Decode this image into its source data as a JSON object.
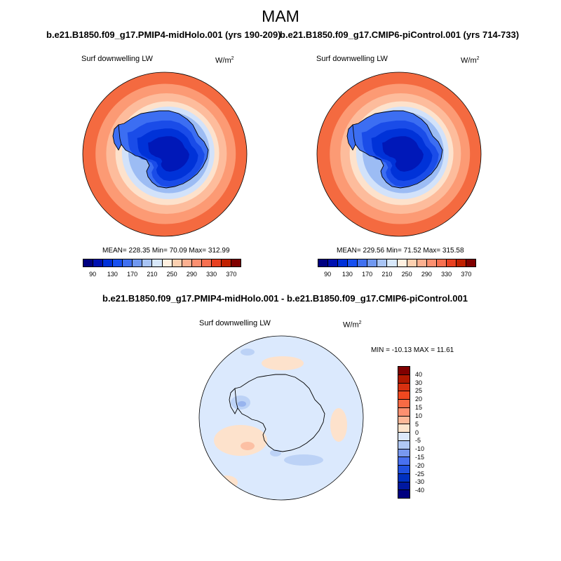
{
  "title": "MAM",
  "left_panel": {
    "case": "b.e21.B1850.f09_g17.PMIP4-midHolo.001 (yrs 190-209)",
    "variable": "Surf downwelling LW",
    "units": "W/m",
    "units_exp": "2",
    "stats": "MEAN= 228.35   Min=  70.09   Max= 312.99"
  },
  "right_panel": {
    "case": "b.e21.B1850.f09_g17.CMIP6-piControl.001 (yrs 714-733)",
    "variable": "Surf downwelling LW",
    "units": "W/m",
    "units_exp": "2",
    "stats": "MEAN= 229.56   Min=  71.52   Max= 315.58"
  },
  "diff_panel": {
    "case": "b.e21.B1850.f09_g17.PMIP4-midHolo.001 - b.e21.B1850.f09_g17.CMIP6-piControl.001",
    "variable": "Surf downwelling LW",
    "units": "W/m",
    "units_exp": "2",
    "minmax": "MIN = -10.13 MAX =  11.61"
  },
  "abs_colorbar": {
    "labels": [
      "90",
      "130",
      "170",
      "210",
      "250",
      "290",
      "330",
      "370"
    ],
    "colors": [
      "#000080",
      "#0010b0",
      "#0030d8",
      "#1850f0",
      "#4070f0",
      "#7098f0",
      "#a8c4f4",
      "#d8e8fa",
      "#fff0e0",
      "#fcd0b0",
      "#fcb090",
      "#fc9070",
      "#f87050",
      "#e84020",
      "#c02000",
      "#800000"
    ]
  },
  "diff_colorbar": {
    "labels": [
      "40",
      "30",
      "25",
      "20",
      "15",
      "10",
      "5",
      "0",
      "-5",
      "-10",
      "-15",
      "-20",
      "-25",
      "-30",
      "-40"
    ],
    "colors": [
      "#800000",
      "#b01800",
      "#d83010",
      "#f04820",
      "#f86a44",
      "#fc9070",
      "#fcb898",
      "#fde4cc",
      "#dce8fa",
      "#b0c8f4",
      "#7898f0",
      "#4870f0",
      "#2050e0",
      "#0030c0",
      "#0018a0",
      "#000080"
    ]
  },
  "map_colors": {
    "ocean_far": "#f46a40",
    "ring_2": "#fc9a74",
    "ring_3": "#fdbc9c",
    "ring_4": "#fde2cc",
    "ring_5": "#d2e2fa",
    "ring_6": "#9cbcf4",
    "ice_1": "#3c6ef2",
    "ice_2": "#1a4ce8",
    "ice_3": "#0032d8",
    "ice_4": "#0018b8",
    "diff_base": "#dbe9fd",
    "diff_pos": "#fde2cc",
    "diff_pos2": "#fcc0a4",
    "diff_neg": "#bcd2f6",
    "diff_neg2": "#98b4ee"
  }
}
